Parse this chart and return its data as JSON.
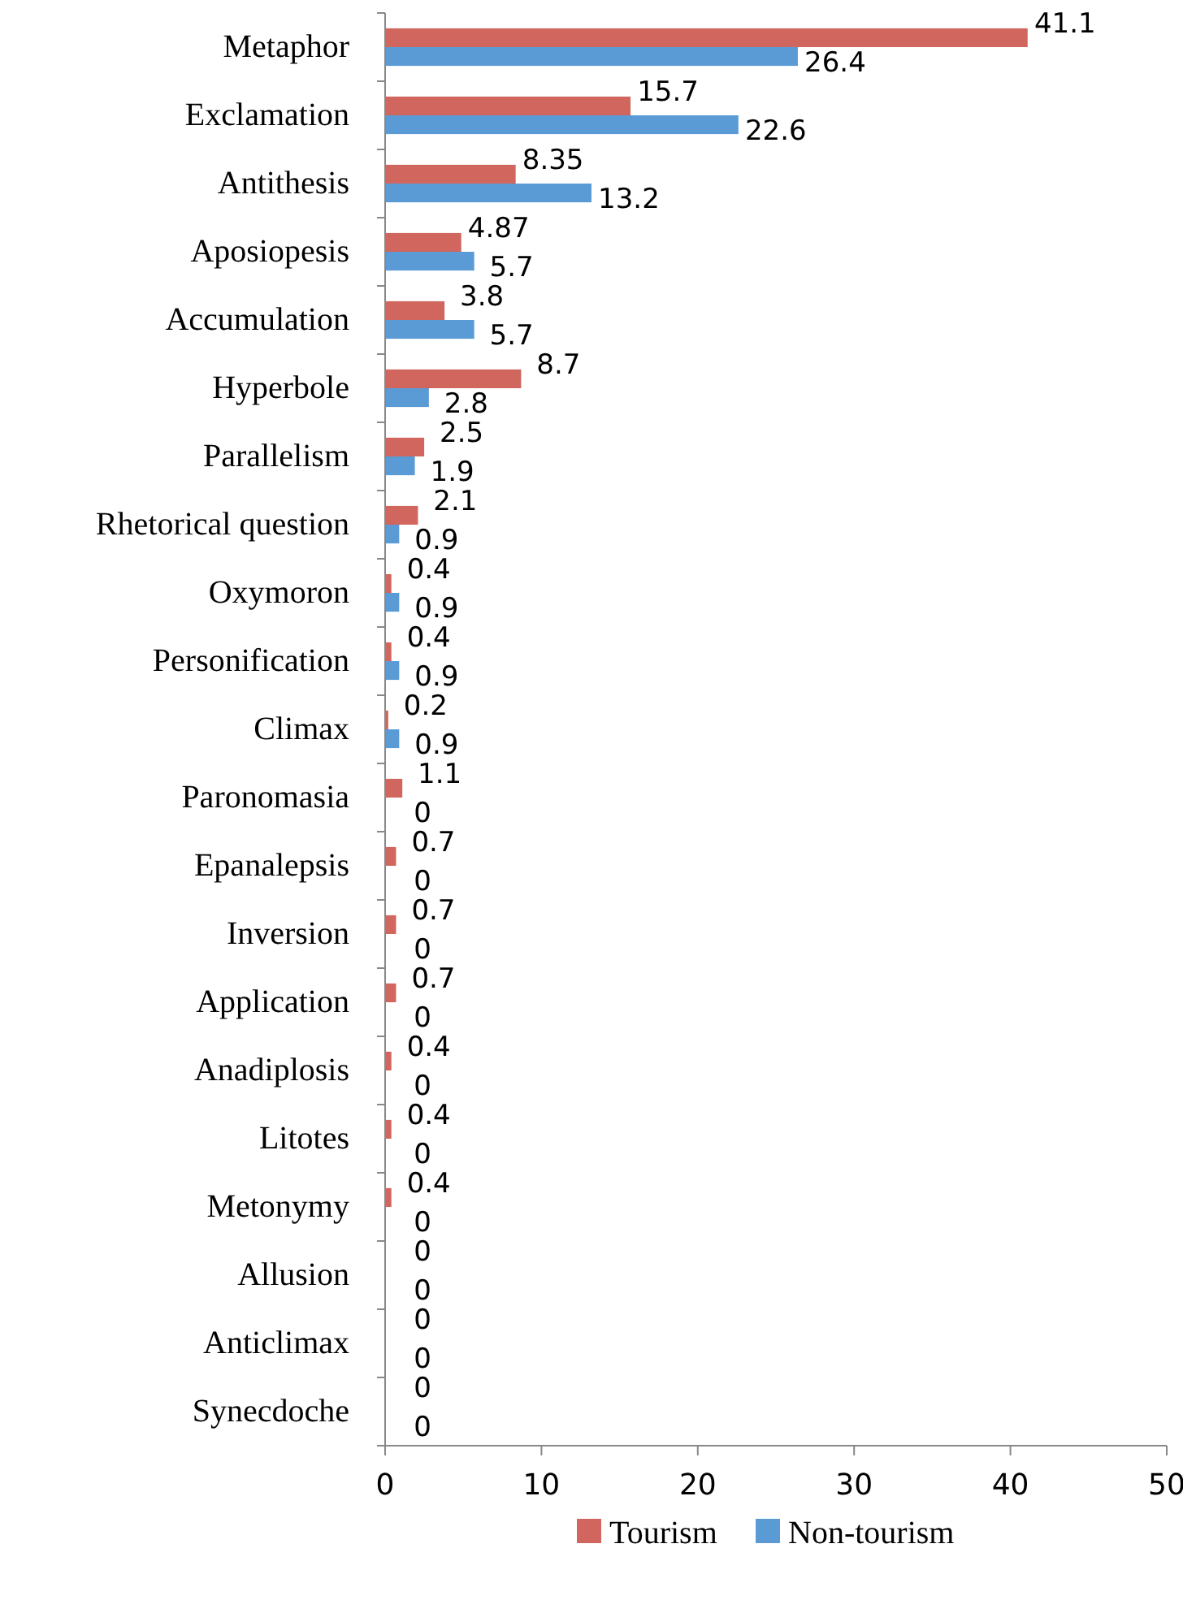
{
  "chart_data": {
    "type": "bar",
    "orientation": "horizontal",
    "categories": [
      "Metaphor",
      "Exclamation",
      "Antithesis",
      "Aposiopesis",
      "Accumulation",
      "Hyperbole",
      "Parallelism",
      "Rhetorical question",
      "Oxymoron",
      "Personification",
      "Climax",
      "Paronomasia",
      "Epanalepsis",
      "Inversion",
      "Application",
      "Anadiplosis",
      "Litotes",
      "Metonymy",
      "Allusion",
      "Anticlimax",
      "Synecdoche"
    ],
    "series": [
      {
        "name": "Tourism",
        "color": "#d0665e",
        "values": [
          41.1,
          15.7,
          8.35,
          4.87,
          3.8,
          8.7,
          2.5,
          2.1,
          0.4,
          0.4,
          0.2,
          1.1,
          0.7,
          0.7,
          0.7,
          0.4,
          0.4,
          0.4,
          0,
          0,
          0
        ]
      },
      {
        "name": "Non-tourism",
        "color": "#5b9bd5",
        "values": [
          26.4,
          22.6,
          13.2,
          5.7,
          5.7,
          2.8,
          1.9,
          0.9,
          0.9,
          0.9,
          0.9,
          0,
          0,
          0,
          0,
          0,
          0,
          0,
          0,
          0,
          0
        ]
      }
    ],
    "xlim": [
      0,
      50
    ],
    "xticks": [
      0,
      10,
      20,
      30,
      40,
      50
    ],
    "data_labels": true,
    "legend": "bottom",
    "grid": false
  }
}
